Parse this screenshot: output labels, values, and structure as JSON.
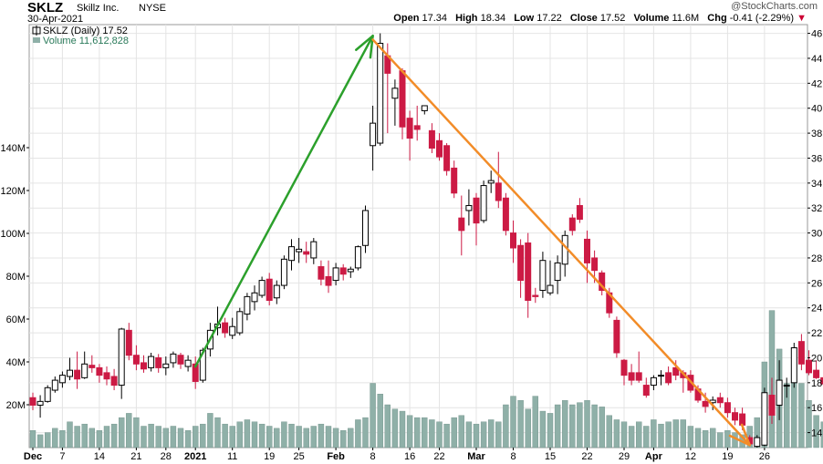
{
  "header": {
    "ticker": "SKLZ",
    "company": "Skillz Inc.",
    "exchange": "NYSE",
    "date": "30-Apr-2021",
    "open_label": "Open",
    "open": "17.34",
    "high_label": "High",
    "high": "18.34",
    "low_label": "Low",
    "low": "17.22",
    "close_label": "Close",
    "close": "17.52",
    "volume_label": "Volume",
    "volume": "11.6M",
    "chg_label": "Chg",
    "chg": "-0.41 (-2.29%)",
    "chg_arrow": "▼",
    "watermark": "@StockCharts.com"
  },
  "legend": {
    "price_label": "SKLZ (Daily) 17.52",
    "volume_label": "Volume 11,612,828"
  },
  "colors": {
    "up_fill": "#ffffff",
    "up_stroke": "#000000",
    "down_fill": "#cc1a44",
    "down_stroke": "#cc1a44",
    "flat_fill": "#000000",
    "volume": "#8fb0a8",
    "volume_stroke": "#6e8f87",
    "grid": "#e4e4e4",
    "trend_up": "#2ca02c",
    "trend_down": "#f28c28"
  },
  "chart_data": {
    "type": "candlestick",
    "y_price_ticks": [
      14,
      16,
      18,
      20,
      22,
      24,
      26,
      28,
      30,
      32,
      34,
      36,
      38,
      40,
      42,
      44,
      46
    ],
    "y_price_range": [
      12.8,
      46.7
    ],
    "y_volume_ticks": [
      20,
      40,
      60,
      80,
      100,
      120,
      140
    ],
    "y_volume_tick_labels": [
      "20M",
      "40M",
      "60M",
      "80M",
      "100M",
      "120M",
      "140M"
    ],
    "y_volume_range_millions": [
      0,
      140
    ],
    "x_ticks": [
      {
        "label": "Dec",
        "index": 0,
        "bold": true
      },
      {
        "label": "7",
        "index": 4
      },
      {
        "label": "14",
        "index": 9
      },
      {
        "label": "21",
        "index": 14
      },
      {
        "label": "28",
        "index": 18
      },
      {
        "label": "2021",
        "index": 22,
        "bold": true
      },
      {
        "label": "11",
        "index": 27
      },
      {
        "label": "19",
        "index": 32
      },
      {
        "label": "25",
        "index": 36
      },
      {
        "label": "Feb",
        "index": 41,
        "bold": true
      },
      {
        "label": "8",
        "index": 46
      },
      {
        "label": "16",
        "index": 51
      },
      {
        "label": "22",
        "index": 55
      },
      {
        "label": "Mar",
        "index": 60,
        "bold": true
      },
      {
        "label": "8",
        "index": 65
      },
      {
        "label": "15",
        "index": 70
      },
      {
        "label": "22",
        "index": 75
      },
      {
        "label": "29",
        "index": 80
      },
      {
        "label": "Apr",
        "index": 84,
        "bold": true
      },
      {
        "label": "12",
        "index": 89
      },
      {
        "label": "19",
        "index": 94
      },
      {
        "label": "26",
        "index": 99
      }
    ],
    "candles": [
      [
        16.8,
        17.2,
        15.8,
        16.2,
        8
      ],
      [
        16.2,
        17.0,
        15.2,
        16.5,
        6
      ],
      [
        16.5,
        17.8,
        16.4,
        17.6,
        7
      ],
      [
        17.4,
        18.5,
        17.2,
        18.2,
        9
      ],
      [
        18.0,
        18.9,
        17.6,
        18.6,
        8
      ],
      [
        18.5,
        20.0,
        18.2,
        19.0,
        12
      ],
      [
        19.0,
        20.5,
        17.5,
        18.3,
        10
      ],
      [
        18.4,
        20.5,
        18.3,
        19.5,
        11
      ],
      [
        19.4,
        20.2,
        18.8,
        19.2,
        9
      ],
      [
        19.2,
        19.5,
        18.0,
        18.6,
        8
      ],
      [
        18.8,
        19.3,
        17.8,
        18.3,
        10
      ],
      [
        18.5,
        19.1,
        17.4,
        17.8,
        11
      ],
      [
        17.8,
        22.4,
        16.7,
        22.3,
        14
      ],
      [
        22.2,
        22.8,
        19.8,
        20.2,
        16
      ],
      [
        20.2,
        21.0,
        19.0,
        19.5,
        14
      ],
      [
        19.6,
        20.2,
        18.8,
        19.1,
        10
      ],
      [
        19.2,
        20.4,
        18.9,
        20.1,
        11
      ],
      [
        20.0,
        20.3,
        18.8,
        19.2,
        10
      ],
      [
        19.2,
        20.1,
        18.6,
        19.5,
        9
      ],
      [
        19.6,
        20.5,
        19.2,
        20.3,
        10
      ],
      [
        20.2,
        20.4,
        19.1,
        19.5,
        9
      ],
      [
        19.3,
        20.2,
        18.9,
        19.8,
        8
      ],
      [
        19.5,
        20.1,
        17.5,
        18.1,
        10
      ],
      [
        18.2,
        20.8,
        18.0,
        20.6,
        11
      ],
      [
        20.7,
        22.8,
        20.1,
        22.2,
        16
      ],
      [
        22.4,
        24.1,
        21.8,
        22.7,
        14
      ],
      [
        22.8,
        23.2,
        21.6,
        22.0,
        11
      ],
      [
        21.8,
        23.2,
        21.5,
        22.5,
        10
      ],
      [
        22.0,
        24.0,
        21.8,
        23.7,
        12
      ],
      [
        23.5,
        25.2,
        23.0,
        24.9,
        13
      ],
      [
        24.5,
        25.8,
        23.8,
        25.2,
        12
      ],
      [
        25.0,
        26.5,
        24.8,
        26.2,
        11
      ],
      [
        26.3,
        26.8,
        24.2,
        24.6,
        10
      ],
      [
        24.8,
        26.2,
        24.3,
        25.8,
        9
      ],
      [
        25.8,
        28.2,
        25.5,
        27.9,
        12
      ],
      [
        27.8,
        29.5,
        27.0,
        28.9,
        11
      ],
      [
        28.5,
        29.6,
        27.6,
        28.7,
        10
      ],
      [
        28.5,
        29.3,
        27.6,
        28.3,
        9
      ],
      [
        28.0,
        29.6,
        27.5,
        29.3,
        10
      ],
      [
        27.3,
        27.8,
        25.8,
        26.3,
        11
      ],
      [
        26.5,
        27.8,
        25.2,
        25.8,
        10
      ],
      [
        26.2,
        27.6,
        25.8,
        27.2,
        9
      ],
      [
        27.2,
        27.5,
        26.2,
        26.7,
        8
      ],
      [
        26.9,
        27.3,
        26.4,
        27.1,
        9
      ],
      [
        27.2,
        29.0,
        27.0,
        28.9,
        13
      ],
      [
        29.0,
        32.2,
        28.4,
        31.8,
        14
      ],
      [
        37.0,
        40.2,
        35.0,
        38.8,
        30
      ],
      [
        37.2,
        46.0,
        37.0,
        45.2,
        25
      ],
      [
        44.2,
        45.2,
        38.0,
        42.8,
        20
      ],
      [
        40.8,
        42.3,
        38.6,
        41.6,
        18
      ],
      [
        43.0,
        43.2,
        37.5,
        38.5,
        17
      ],
      [
        39.2,
        39.8,
        35.8,
        37.6,
        15
      ],
      [
        38.6,
        40.2,
        37.4,
        38.3,
        14
      ],
      [
        39.8,
        40.2,
        39.5,
        40.2,
        14
      ],
      [
        38.2,
        38.8,
        36.4,
        36.8,
        13
      ],
      [
        37.4,
        38.0,
        35.8,
        36.1,
        12
      ],
      [
        37.0,
        37.2,
        34.6,
        35.0,
        11
      ],
      [
        35.2,
        35.8,
        32.8,
        33.2,
        14
      ],
      [
        31.2,
        33.0,
        28.2,
        30.2,
        15
      ],
      [
        31.8,
        33.5,
        30.6,
        32.2,
        12
      ],
      [
        32.8,
        33.2,
        29.0,
        30.8,
        11
      ],
      [
        31.0,
        34.2,
        30.8,
        33.8,
        12
      ],
      [
        34.0,
        35.0,
        33.2,
        34.2,
        13
      ],
      [
        34.0,
        36.5,
        32.0,
        32.6,
        12
      ],
      [
        32.8,
        33.2,
        29.8,
        30.2,
        20
      ],
      [
        30.0,
        31.0,
        27.6,
        28.8,
        24
      ],
      [
        29.0,
        29.5,
        24.8,
        26.2,
        22
      ],
      [
        29.2,
        30.0,
        23.2,
        24.6,
        18
      ],
      [
        25.0,
        25.6,
        24.4,
        24.9,
        24
      ],
      [
        25.4,
        28.5,
        24.8,
        27.8,
        17
      ],
      [
        25.2,
        27.8,
        25.0,
        25.8,
        16
      ],
      [
        26.2,
        28.2,
        25.1,
        27.6,
        20
      ],
      [
        27.5,
        30.2,
        26.5,
        29.8,
        22
      ],
      [
        31.2,
        31.5,
        29.8,
        30.2,
        20
      ],
      [
        32.2,
        32.8,
        30.8,
        31.1,
        21
      ],
      [
        29.5,
        30.2,
        26.0,
        27.6,
        22
      ],
      [
        28.0,
        28.6,
        26.0,
        27.0,
        20
      ],
      [
        26.8,
        27.0,
        25.0,
        25.4,
        19
      ],
      [
        25.2,
        25.6,
        23.2,
        23.6,
        15
      ],
      [
        23.0,
        23.3,
        20.0,
        20.4,
        13
      ],
      [
        19.8,
        19.9,
        17.8,
        18.6,
        12
      ],
      [
        18.8,
        19.5,
        17.8,
        18.2,
        10
      ],
      [
        18.8,
        20.5,
        18.0,
        18.2,
        12
      ],
      [
        17.8,
        18.4,
        16.8,
        17.0,
        10
      ],
      [
        17.8,
        18.6,
        17.4,
        18.4,
        13
      ],
      [
        18.6,
        19.0,
        17.8,
        18.6,
        11
      ],
      [
        18.8,
        19.3,
        17.8,
        18.0,
        12
      ],
      [
        19.2,
        19.8,
        18.2,
        18.6,
        13
      ],
      [
        18.8,
        19.0,
        17.2,
        18.4,
        13
      ],
      [
        18.6,
        19.0,
        17.2,
        17.4,
        10
      ],
      [
        17.5,
        17.8,
        16.4,
        16.6,
        9
      ],
      [
        16.5,
        17.2,
        15.6,
        16.1,
        8
      ],
      [
        16.4,
        16.9,
        15.8,
        16.6,
        9
      ],
      [
        16.8,
        17.2,
        16.0,
        16.4,
        7
      ],
      [
        16.4,
        16.8,
        15.2,
        15.6,
        8
      ],
      [
        15.6,
        16.0,
        14.6,
        15.0,
        7
      ],
      [
        15.5,
        16.0,
        14.2,
        14.6,
        6
      ],
      [
        13.6,
        13.8,
        12.9,
        13.1,
        10
      ],
      [
        12.9,
        13.8,
        12.8,
        13.6,
        14
      ],
      [
        13.0,
        17.6,
        12.9,
        17.2,
        40
      ],
      [
        17.0,
        18.4,
        14.7,
        15.4,
        64
      ],
      [
        16.2,
        19.8,
        15.0,
        18.2,
        46
      ],
      [
        17.8,
        18.4,
        16.8,
        17.8,
        30
      ],
      [
        18.0,
        21.2,
        17.6,
        20.8,
        37
      ],
      [
        21.3,
        21.9,
        19.0,
        19.5,
        30
      ],
      [
        19.8,
        20.6,
        18.6,
        18.8,
        22
      ],
      [
        19.0,
        19.8,
        18.3,
        18.4,
        15
      ],
      [
        18.4,
        19.6,
        17.2,
        17.9,
        12
      ],
      [
        17.34,
        18.34,
        17.22,
        17.52,
        11.6
      ]
    ],
    "trendlines": [
      {
        "from": {
          "index": 22,
          "price": 19.3
        },
        "to": {
          "index": 46,
          "price": 45.8
        },
        "color": "trend_up",
        "label": ""
      },
      {
        "from": {
          "index": 46,
          "price": 45.5
        },
        "to": {
          "index": 97,
          "price": 13.0
        },
        "color": "trend_down",
        "label": ""
      }
    ]
  }
}
